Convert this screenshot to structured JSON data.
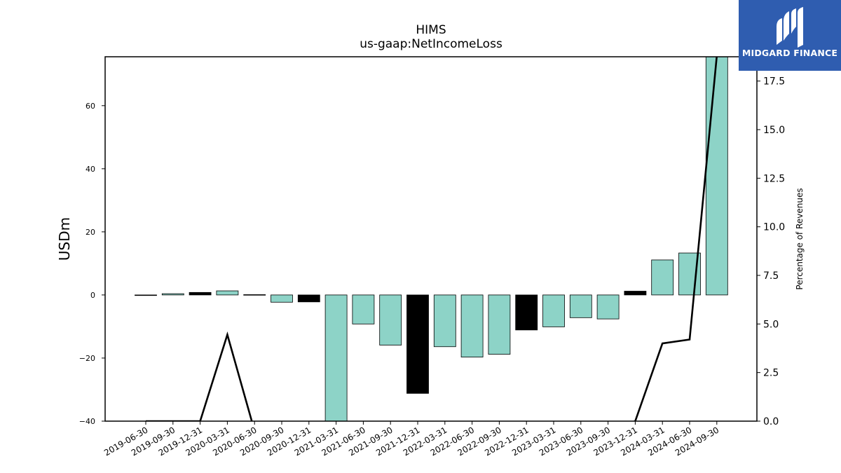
{
  "chart_data": {
    "type": "bar",
    "title": "HIMS",
    "subtitle": "us-gaap:NetIncomeLoss",
    "ylabel": "USDm",
    "y2label": "Percentage of Revenues",
    "ylim": [
      -40,
      75.5
    ],
    "y2lim": [
      0.0,
      18.75
    ],
    "yticks": [
      "−40",
      "−20",
      "0",
      "20",
      "40",
      "60"
    ],
    "yticks_values": [
      -40,
      -20,
      0,
      20,
      40,
      60
    ],
    "y2ticks": [
      "0.0",
      "2.5",
      "5.0",
      "7.5",
      "10.0",
      "12.5",
      "15.0",
      "17.5"
    ],
    "y2ticks_values": [
      0,
      2.5,
      5,
      7.5,
      10,
      12.5,
      15,
      17.5
    ],
    "categories": [
      "2019-06-30",
      "2019-09-30",
      "2019-12-31",
      "2020-03-31",
      "2020-06-30",
      "2020-09-30",
      "2020-12-31",
      "2021-03-31",
      "2021-06-30",
      "2021-09-30",
      "2021-12-31",
      "2022-03-31",
      "2022-06-30",
      "2022-09-30",
      "2022-12-31",
      "2023-03-31",
      "2023-06-30",
      "2023-09-30",
      "2023-12-31",
      "2024-03-31",
      "2024-06-30",
      "2024-09-30"
    ],
    "series": [
      {
        "type": "bar",
        "values": [
          -0.1,
          0.4,
          0.8,
          1.3,
          0.1,
          -2.3,
          -2.2,
          -40,
          -9.2,
          -15.9,
          -31.2,
          -16.4,
          -19.7,
          -18.8,
          -11.1,
          -10.1,
          -7.2,
          -7.6,
          1.2,
          11.1,
          13.3,
          75.6
        ],
        "q4_color": "#000000",
        "color": "#8dd3c7"
      },
      {
        "type": "line",
        "axis": "y2",
        "color": "#000000",
        "values": [
          0.0,
          0.0,
          0.0,
          4.45,
          -0.5,
          null,
          null,
          null,
          null,
          null,
          null,
          null,
          null,
          null,
          null,
          null,
          null,
          -0.5,
          0.0,
          4.0,
          4.2,
          18.8
        ]
      }
    ],
    "grid": false,
    "legend": "none"
  },
  "logo": {
    "text": "MIDGARD FINANCE"
  }
}
